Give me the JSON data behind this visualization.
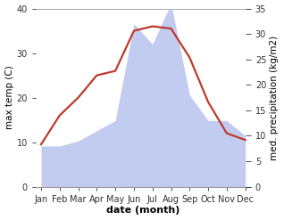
{
  "months": [
    "Jan",
    "Feb",
    "Mar",
    "Apr",
    "May",
    "Jun",
    "Jul",
    "Aug",
    "Sep",
    "Oct",
    "Nov",
    "Dec"
  ],
  "month_indices": [
    0,
    1,
    2,
    3,
    4,
    5,
    6,
    7,
    8,
    9,
    10,
    11
  ],
  "temperature": [
    9.5,
    16.0,
    20.0,
    25.0,
    26.0,
    35.0,
    36.0,
    35.5,
    29.0,
    19.0,
    12.0,
    10.5
  ],
  "precipitation": [
    8.0,
    8.0,
    9.0,
    11.0,
    13.0,
    32.0,
    28.0,
    36.0,
    18.0,
    13.0,
    13.0,
    10.0
  ],
  "temp_color": "#c0392b",
  "precip_fill_color": "#b8c4ee",
  "temp_ylim": [
    0,
    40
  ],
  "precip_ylim": [
    0,
    35
  ],
  "temp_yticks": [
    0,
    10,
    20,
    30,
    40
  ],
  "precip_yticks": [
    0,
    5,
    10,
    15,
    20,
    25,
    30,
    35
  ],
  "xlabel": "date (month)",
  "ylabel_left": "max temp (C)",
  "ylabel_right": "med. precipitation (kg/m2)",
  "background_color": "#ffffff",
  "spine_color": "#999999",
  "tick_color": "#333333",
  "label_fontsize": 7.5,
  "tick_fontsize": 7.0
}
